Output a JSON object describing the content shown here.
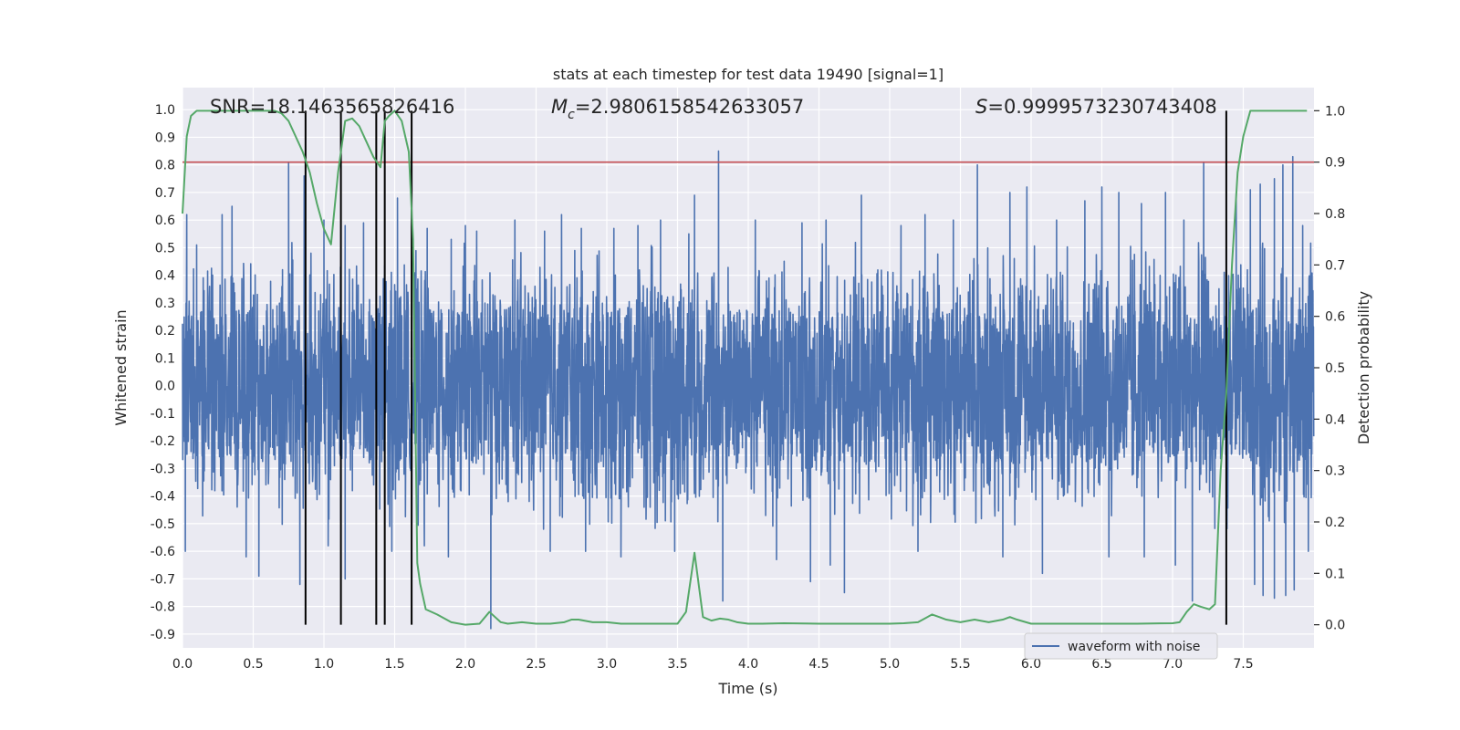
{
  "chart_data": {
    "type": "line",
    "title": "stats at each timestep for test data 19490 [signal=1]",
    "xlabel": "Time (s)",
    "ylabel": "Whitened strain",
    "y2label": "Detection probability",
    "xlim": [
      0.0,
      8.0
    ],
    "ylim": [
      -0.95,
      1.08
    ],
    "y2lim": [
      -0.045,
      1.045
    ],
    "xticks": [
      0.0,
      0.5,
      1.0,
      1.5,
      2.0,
      2.5,
      3.0,
      3.5,
      4.0,
      4.5,
      5.0,
      5.5,
      6.0,
      6.5,
      7.0,
      7.5
    ],
    "xtick_labels": [
      "0.0",
      "0.5",
      "1.0",
      "1.5",
      "2.0",
      "2.5",
      "3.0",
      "3.5",
      "4.0",
      "4.5",
      "5.0",
      "5.5",
      "6.0",
      "6.5",
      "7.0",
      "7.5"
    ],
    "yticks": [
      1.0,
      0.9,
      0.8,
      0.7,
      0.6,
      0.5,
      0.4,
      0.3,
      0.2,
      0.1,
      0.0,
      -0.1,
      -0.2,
      -0.3,
      -0.4,
      -0.5,
      -0.6,
      -0.7,
      -0.8,
      -0.9
    ],
    "ytick_labels": [
      "1.0",
      "0.9",
      "0.8",
      "0.7",
      "0.6",
      "0.5",
      "0.4",
      "0.3",
      "0.2",
      "0.1",
      "0.0",
      "-0.1",
      "-0.2",
      "-0.3",
      "-0.4",
      "-0.5",
      "-0.6",
      "-0.7",
      "-0.8",
      "-0.9"
    ],
    "y2ticks": [
      1.0,
      0.9,
      0.8,
      0.7,
      0.6,
      0.5,
      0.4,
      0.3,
      0.2,
      0.1,
      0.0
    ],
    "y2tick_labels": [
      "1.0",
      "0.9",
      "0.8",
      "0.7",
      "0.6",
      "0.5",
      "0.4",
      "0.3",
      "0.2",
      "0.1",
      "0.0"
    ],
    "annotations": {
      "snr": "SNR=18.1463565826416",
      "mc_symbol": "M",
      "mc_sub": "c",
      "mc_value": "=2.9806158542633057",
      "s_symbol": "S",
      "s_value": "=0.9999573230743408"
    },
    "legend": {
      "label": "waveform with noise",
      "placement": "lower-right"
    },
    "threshold_line": {
      "y2": 0.9,
      "color": "#c44e52"
    },
    "detection_markers_x": [
      0.87,
      1.12,
      1.37,
      1.43,
      1.62,
      7.38
    ],
    "colors": {
      "background": "#eaeaf2",
      "grid": "#ffffff",
      "waveform": "#4c72b0",
      "probability": "#55a868",
      "markers": "#000000"
    },
    "waveform": {
      "series_name": "waveform with noise",
      "sample_rate_hz": 512,
      "duration_s": 8.0,
      "core_amplitude": 0.28,
      "upper_spikes": [
        [
          0.03,
          0.62
        ],
        [
          0.1,
          0.51
        ],
        [
          0.28,
          0.62
        ],
        [
          0.35,
          0.65
        ],
        [
          0.75,
          0.81
        ],
        [
          0.86,
          0.76
        ],
        [
          1.0,
          0.6
        ],
        [
          1.15,
          0.58
        ],
        [
          1.28,
          0.59
        ],
        [
          1.52,
          0.68
        ],
        [
          1.73,
          0.57
        ],
        [
          1.9,
          0.53
        ],
        [
          2.0,
          0.58
        ],
        [
          2.08,
          0.56
        ],
        [
          2.35,
          0.6
        ],
        [
          2.56,
          0.56
        ],
        [
          2.68,
          0.62
        ],
        [
          2.82,
          0.57
        ],
        [
          3.05,
          0.57
        ],
        [
          3.22,
          0.58
        ],
        [
          3.38,
          0.6
        ],
        [
          3.58,
          0.55
        ],
        [
          3.62,
          0.69
        ],
        [
          3.79,
          0.85
        ],
        [
          4.05,
          0.6
        ],
        [
          4.38,
          0.59
        ],
        [
          4.55,
          0.6
        ],
        [
          4.8,
          0.69
        ],
        [
          5.08,
          0.58
        ],
        [
          5.25,
          0.62
        ],
        [
          5.45,
          0.6
        ],
        [
          5.62,
          0.8
        ],
        [
          5.85,
          0.7
        ],
        [
          5.97,
          0.72
        ],
        [
          6.18,
          0.6
        ],
        [
          6.38,
          0.67
        ],
        [
          6.5,
          0.72
        ],
        [
          6.62,
          0.7
        ],
        [
          6.78,
          0.66
        ],
        [
          6.95,
          0.7
        ],
        [
          7.08,
          0.6
        ],
        [
          7.22,
          0.81
        ],
        [
          7.45,
          0.7
        ],
        [
          7.55,
          0.71
        ],
        [
          7.62,
          0.73
        ],
        [
          7.72,
          0.75
        ],
        [
          7.78,
          0.8
        ],
        [
          7.85,
          0.83
        ],
        [
          7.92,
          0.58
        ]
      ],
      "lower_spikes": [
        [
          0.02,
          -0.6
        ],
        [
          0.45,
          -0.62
        ],
        [
          0.54,
          -0.69
        ],
        [
          0.83,
          -0.72
        ],
        [
          1.03,
          -0.58
        ],
        [
          1.15,
          -0.7
        ],
        [
          1.48,
          -0.6
        ],
        [
          1.71,
          -0.58
        ],
        [
          1.88,
          -0.62
        ],
        [
          2.18,
          -0.88
        ],
        [
          2.6,
          -0.6
        ],
        [
          2.85,
          -0.6
        ],
        [
          3.1,
          -0.62
        ],
        [
          3.48,
          -0.6
        ],
        [
          3.82,
          -0.78
        ],
        [
          4.2,
          -0.63
        ],
        [
          4.44,
          -0.71
        ],
        [
          4.58,
          -0.65
        ],
        [
          4.68,
          -0.75
        ],
        [
          5.2,
          -0.6
        ],
        [
          5.8,
          -0.62
        ],
        [
          6.08,
          -0.68
        ],
        [
          6.55,
          -0.62
        ],
        [
          6.8,
          -0.62
        ],
        [
          7.02,
          -0.65
        ],
        [
          7.14,
          -0.78
        ],
        [
          7.58,
          -0.72
        ],
        [
          7.64,
          -0.76
        ],
        [
          7.72,
          -0.77
        ],
        [
          7.8,
          -0.76
        ],
        [
          7.86,
          -0.74
        ],
        [
          7.96,
          -0.6
        ]
      ]
    },
    "probability": {
      "x": [
        0.0,
        0.03,
        0.06,
        0.1,
        0.2,
        0.3,
        0.4,
        0.5,
        0.6,
        0.65,
        0.7,
        0.75,
        0.8,
        0.85,
        0.9,
        0.95,
        1.0,
        1.05,
        1.1,
        1.15,
        1.2,
        1.25,
        1.3,
        1.35,
        1.4,
        1.43,
        1.46,
        1.5,
        1.55,
        1.6,
        1.63,
        1.66,
        1.68,
        1.72,
        1.8,
        1.9,
        2.0,
        2.1,
        2.17,
        2.25,
        2.3,
        2.4,
        2.5,
        2.6,
        2.7,
        2.75,
        2.8,
        2.9,
        3.0,
        3.1,
        3.2,
        3.3,
        3.4,
        3.5,
        3.56,
        3.62,
        3.68,
        3.74,
        3.8,
        3.86,
        3.92,
        4.0,
        4.1,
        4.25,
        4.5,
        4.75,
        5.0,
        5.1,
        5.2,
        5.3,
        5.35,
        5.4,
        5.5,
        5.6,
        5.7,
        5.8,
        5.85,
        5.9,
        6.0,
        6.1,
        6.25,
        6.5,
        6.75,
        7.0,
        7.05,
        7.1,
        7.15,
        7.2,
        7.26,
        7.3,
        7.34,
        7.38,
        7.42,
        7.46,
        7.5,
        7.55,
        7.6,
        7.7,
        7.8,
        7.9,
        7.95
      ],
      "y": [
        0.8,
        0.95,
        0.99,
        1.0,
        1.0,
        1.0,
        1.0,
        1.0,
        1.0,
        1.0,
        0.995,
        0.98,
        0.95,
        0.92,
        0.88,
        0.82,
        0.77,
        0.74,
        0.88,
        0.98,
        0.985,
        0.97,
        0.94,
        0.91,
        0.89,
        0.98,
        0.99,
        1.0,
        0.98,
        0.92,
        0.75,
        0.12,
        0.08,
        0.03,
        0.02,
        0.005,
        0.0,
        0.002,
        0.025,
        0.005,
        0.002,
        0.005,
        0.002,
        0.002,
        0.005,
        0.01,
        0.01,
        0.005,
        0.005,
        0.002,
        0.002,
        0.002,
        0.002,
        0.002,
        0.025,
        0.14,
        0.015,
        0.008,
        0.012,
        0.01,
        0.005,
        0.002,
        0.002,
        0.003,
        0.002,
        0.002,
        0.002,
        0.003,
        0.005,
        0.02,
        0.015,
        0.01,
        0.005,
        0.01,
        0.005,
        0.01,
        0.015,
        0.01,
        0.002,
        0.002,
        0.002,
        0.002,
        0.002,
        0.003,
        0.005,
        0.025,
        0.04,
        0.035,
        0.03,
        0.04,
        0.3,
        0.45,
        0.7,
        0.88,
        0.95,
        1.0,
        1.0,
        1.0,
        1.0,
        1.0,
        1.0
      ]
    }
  }
}
